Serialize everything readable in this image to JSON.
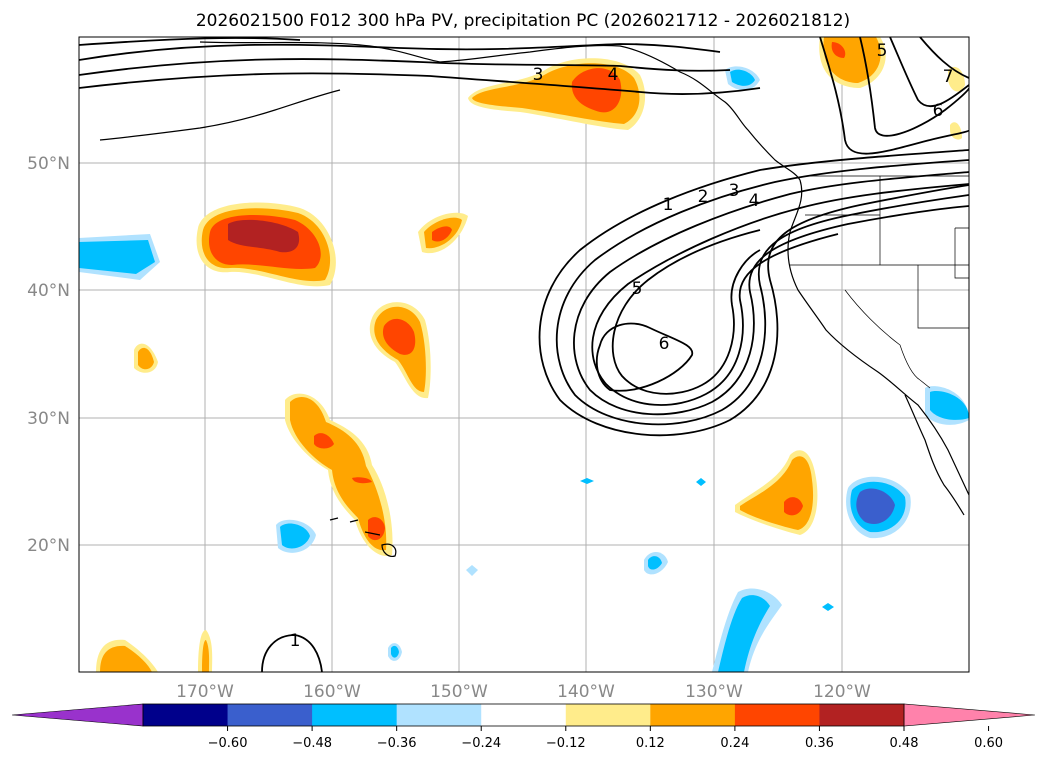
{
  "title": "2026021500 F012 300 hPa PV, precipitation PC (2026021712 - 2026021812)",
  "map": {
    "lat_labels": [
      "50°N",
      "40°N",
      "30°N",
      "20°N"
    ],
    "lon_labels": [
      "170°W",
      "160°W",
      "150°W",
      "140°W",
      "130°W",
      "120°W"
    ],
    "lat_range": [
      10,
      58.5
    ],
    "lon_range": [
      -180,
      -110
    ],
    "pv_contour_labels": [
      "1",
      "2",
      "3",
      "4",
      "5",
      "6",
      "3",
      "4",
      "5",
      "6",
      "7",
      "1"
    ]
  },
  "colorbar": {
    "ticks": [
      "−0.60",
      "−0.48",
      "−0.36",
      "−0.24",
      "−0.12",
      "0.12",
      "0.24",
      "0.36",
      "0.48",
      "0.60"
    ],
    "levels": [
      -0.72,
      -0.6,
      -0.48,
      -0.36,
      -0.24,
      -0.12,
      0.12,
      0.24,
      0.36,
      0.48,
      0.6,
      0.72
    ],
    "colors": [
      "#9932cc",
      "#00008b",
      "#3a5fcd",
      "#00bfff",
      "#b0e2ff",
      "#ffffff",
      "#ffec8b",
      "#ffa500",
      "#ff4500",
      "#b22222",
      "#ff82ab"
    ]
  }
}
